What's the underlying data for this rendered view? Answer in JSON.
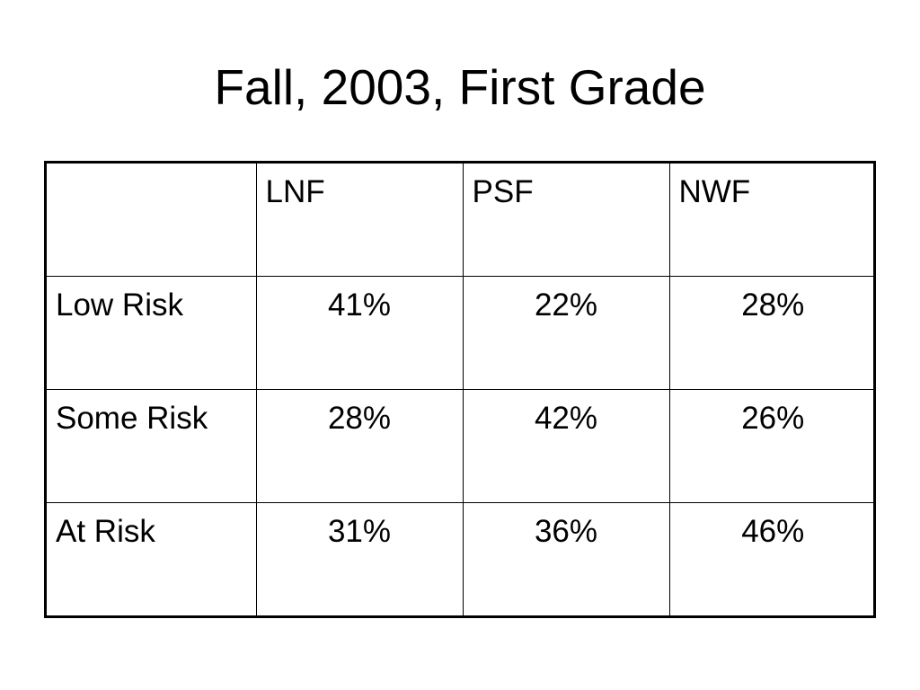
{
  "title": "Fall, 2003, First Grade",
  "table": {
    "columns": [
      "",
      "LNF",
      "PSF",
      "NWF"
    ],
    "rows": [
      {
        "label": "Low Risk",
        "values": [
          "41%",
          "22%",
          "28%"
        ]
      },
      {
        "label": "Some Risk",
        "values": [
          "28%",
          "42%",
          "26%"
        ]
      },
      {
        "label": "At Risk",
        "values": [
          "31%",
          "36%",
          "46%"
        ]
      }
    ]
  }
}
